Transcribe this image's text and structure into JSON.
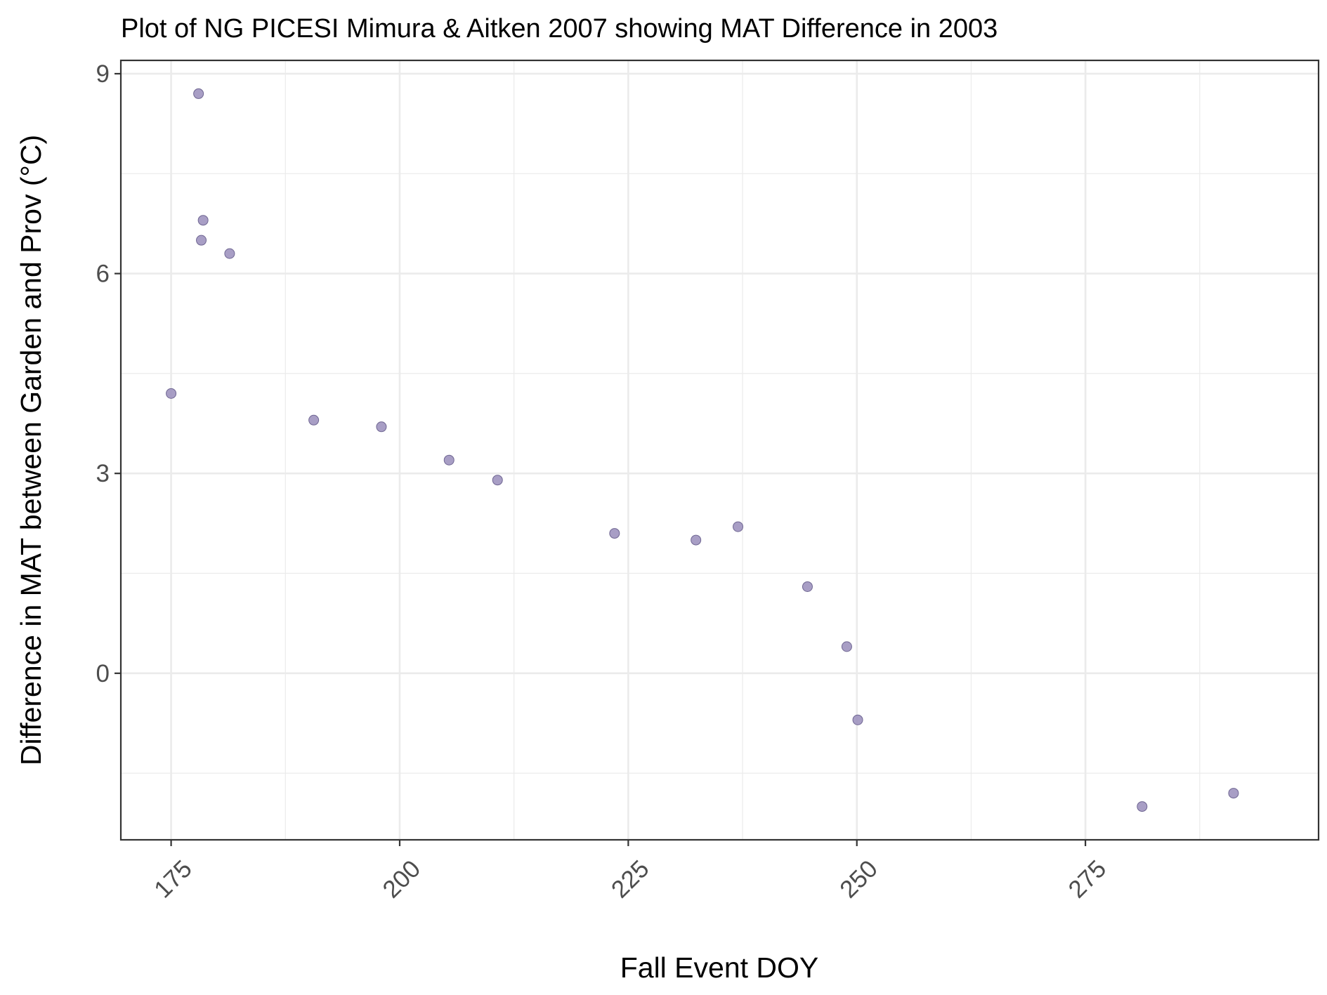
{
  "chart_data": {
    "type": "scatter",
    "title": "Plot of NG PICESI Mimura & Aitken 2007 showing MAT Difference in 2003",
    "xlabel": "Fall Event DOY",
    "ylabel": "Difference in MAT between Garden and Prov (°C)",
    "xlim": [
      169.5,
      300.5
    ],
    "ylim": [
      -2.5,
      9.2
    ],
    "xticks": [
      175,
      200,
      225,
      250,
      275
    ],
    "yticks": [
      0,
      3,
      6,
      9
    ],
    "grid": true,
    "legend": "none",
    "point_color": "#9e94bf",
    "point_stroke": "#6f6692",
    "points": [
      {
        "x": 175,
        "y": 4.2
      },
      {
        "x": 178,
        "y": 8.7
      },
      {
        "x": 178.5,
        "y": 6.8
      },
      {
        "x": 178.3,
        "y": 6.5
      },
      {
        "x": 181.4,
        "y": 6.3
      },
      {
        "x": 190.6,
        "y": 3.8
      },
      {
        "x": 198,
        "y": 3.7
      },
      {
        "x": 205.4,
        "y": 3.2
      },
      {
        "x": 210.7,
        "y": 2.9
      },
      {
        "x": 223.5,
        "y": 2.1
      },
      {
        "x": 232.4,
        "y": 2.0
      },
      {
        "x": 237,
        "y": 2.2
      },
      {
        "x": 244.6,
        "y": 1.3
      },
      {
        "x": 248.9,
        "y": 0.4
      },
      {
        "x": 250.1,
        "y": -0.7
      },
      {
        "x": 281.2,
        "y": -2.0
      },
      {
        "x": 291.2,
        "y": -1.8
      }
    ]
  }
}
